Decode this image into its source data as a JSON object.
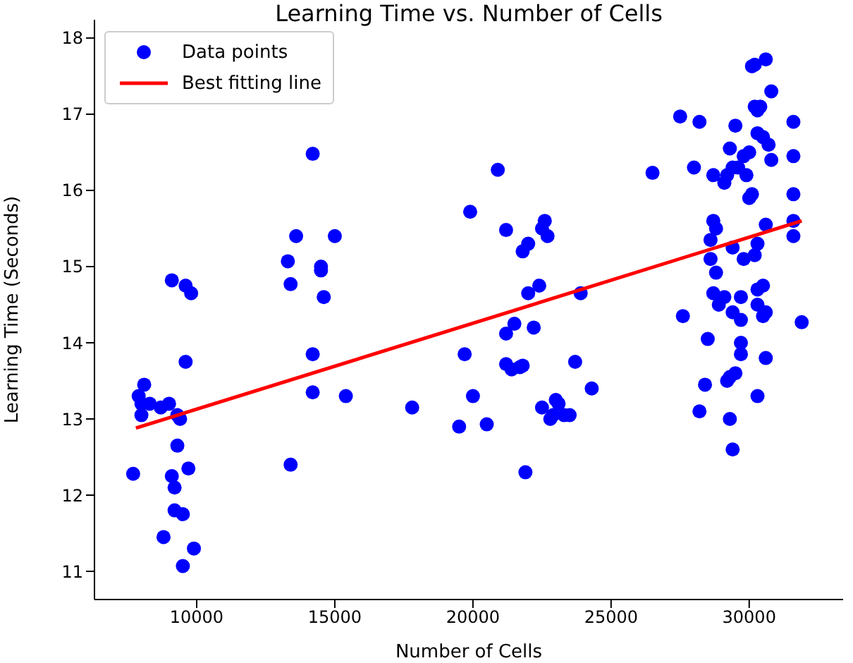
{
  "chart_data": {
    "type": "scatter",
    "title": "Learning Time vs. Number of Cells",
    "xlabel": "Number of Cells",
    "ylabel": "Learning Time (Seconds)",
    "xlim": [
      6300,
      33400
    ],
    "ylim": [
      10.63,
      18.24
    ],
    "xticks": [
      10000,
      15000,
      20000,
      25000,
      30000
    ],
    "yticks": [
      11,
      12,
      13,
      14,
      15,
      16,
      17,
      18
    ],
    "grid": false,
    "legend": "top left",
    "series": [
      {
        "name": "Data points",
        "color": "#0000ff",
        "marker": "circle",
        "x": [
          7700,
          7900,
          8000,
          8000,
          8100,
          8300,
          8700,
          8800,
          9000,
          9100,
          9100,
          9200,
          9200,
          9300,
          9300,
          9400,
          9500,
          9500,
          9600,
          9600,
          9700,
          9800,
          9900,
          13300,
          13400,
          13400,
          13600,
          14200,
          14200,
          14200,
          14500,
          14500,
          14600,
          15000,
          15400,
          17800,
          19500,
          19700,
          19900,
          20000,
          20500,
          20900,
          21200,
          21200,
          21200,
          21500,
          21400,
          21700,
          21800,
          21800,
          21900,
          22000,
          22000,
          22200,
          22400,
          22500,
          22500,
          22600,
          22700,
          22800,
          22900,
          23000,
          23100,
          23300,
          23500,
          23700,
          23900,
          24300,
          26500,
          27500,
          27600,
          28000,
          28200,
          28200,
          28400,
          28500,
          28600,
          28600,
          28700,
          28700,
          28700,
          28800,
          28800,
          28900,
          29100,
          29100,
          29200,
          29200,
          29300,
          29300,
          29300,
          29400,
          29400,
          29400,
          29400,
          29500,
          29500,
          29600,
          29700,
          29700,
          29700,
          29700,
          29800,
          29800,
          29900,
          30000,
          30000,
          30100,
          30100,
          30200,
          30200,
          30200,
          30300,
          30300,
          30300,
          30300,
          30300,
          30300,
          30400,
          30500,
          30500,
          30500,
          30600,
          30600,
          30600,
          30600,
          30700,
          30800,
          30800,
          31600,
          31600,
          31600,
          31600,
          31600,
          31900
        ],
        "values": [
          12.28,
          13.3,
          13.2,
          13.05,
          13.45,
          13.2,
          13.15,
          11.45,
          13.2,
          14.82,
          12.25,
          11.8,
          12.1,
          13.05,
          12.65,
          13.0,
          11.75,
          11.07,
          13.75,
          14.75,
          12.35,
          14.65,
          11.3,
          15.07,
          14.77,
          12.4,
          15.4,
          16.48,
          13.85,
          13.35,
          15.0,
          14.95,
          14.6,
          15.4,
          13.3,
          13.15,
          12.9,
          13.85,
          15.72,
          13.3,
          12.93,
          16.27,
          15.48,
          14.12,
          13.72,
          14.25,
          13.65,
          13.68,
          15.2,
          13.7,
          12.3,
          15.3,
          14.65,
          14.2,
          14.75,
          13.15,
          15.5,
          15.6,
          15.4,
          13.0,
          13.05,
          13.25,
          13.2,
          13.05,
          13.05,
          13.75,
          14.65,
          13.4,
          16.23,
          16.97,
          14.35,
          16.3,
          16.9,
          13.1,
          13.45,
          14.05,
          15.35,
          15.1,
          16.2,
          15.6,
          14.65,
          15.5,
          14.92,
          14.5,
          16.1,
          14.6,
          16.2,
          13.5,
          16.55,
          13.55,
          13.0,
          16.3,
          15.25,
          14.4,
          12.6,
          16.85,
          13.6,
          16.3,
          14.6,
          14.3,
          14.0,
          13.85,
          16.45,
          15.1,
          16.2,
          16.5,
          15.9,
          17.63,
          15.95,
          17.65,
          15.15,
          17.1,
          17.05,
          16.75,
          15.3,
          14.7,
          14.5,
          13.3,
          17.1,
          16.7,
          14.75,
          14.35,
          17.72,
          15.55,
          14.4,
          13.8,
          16.6,
          17.3,
          16.4,
          16.9,
          16.45,
          15.95,
          15.6,
          15.4,
          14.27
        ]
      },
      {
        "type": "line",
        "name": "Best fitting line",
        "color": "#ff0000",
        "line_style": "solid",
        "x": [
          7800,
          31900
        ],
        "values": [
          12.88,
          15.6
        ]
      }
    ]
  }
}
